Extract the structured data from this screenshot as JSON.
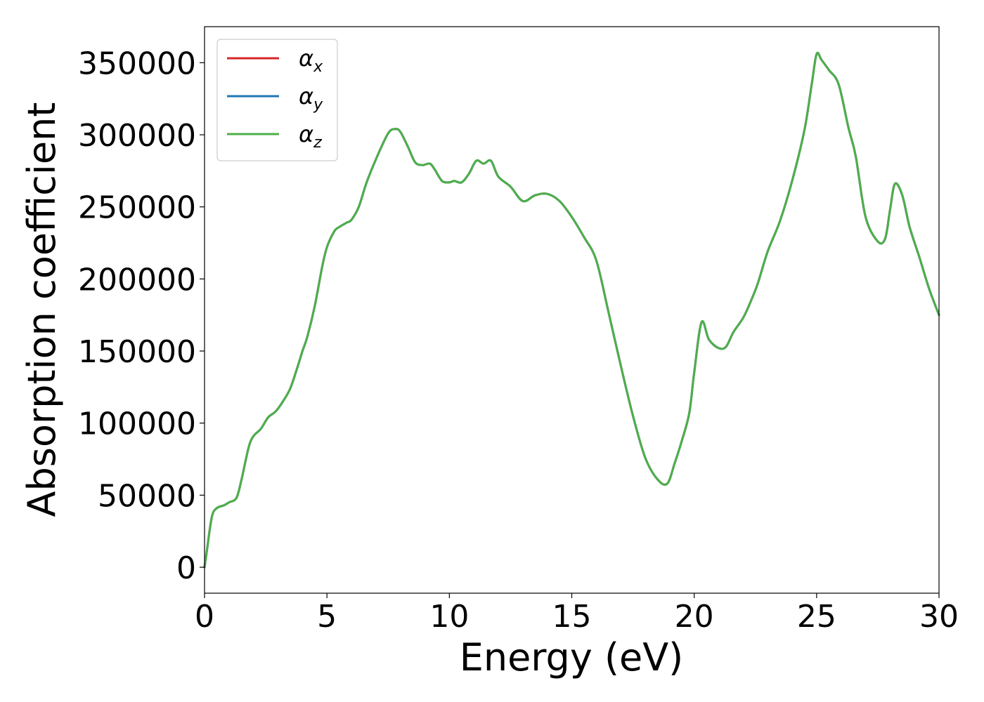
{
  "chart_data": {
    "type": "line",
    "title": "",
    "xlabel": "Energy (eV)",
    "ylabel": "Absorption coefficient",
    "xlim": [
      0,
      30
    ],
    "ylim": [
      -18000,
      375000
    ],
    "xticks": [
      0,
      5,
      10,
      15,
      20,
      25,
      30
    ],
    "yticks": [
      0,
      50000,
      100000,
      150000,
      200000,
      250000,
      300000,
      350000
    ],
    "xtick_labels": [
      "0",
      "5",
      "10",
      "15",
      "20",
      "25",
      "30"
    ],
    "ytick_labels": [
      "0",
      "50000",
      "100000",
      "150000",
      "200000",
      "250000",
      "300000",
      "350000"
    ],
    "grid": false,
    "legend_position": "top-left",
    "colors": {
      "alpha_x": "#d62728",
      "alpha_y": "#1f77b4",
      "alpha_z": "#4daf4a"
    },
    "x": [
      0,
      0.1,
      0.3,
      0.5,
      0.8,
      1.0,
      1.3,
      1.5,
      1.8,
      2.0,
      2.3,
      2.6,
      2.9,
      3.2,
      3.5,
      3.8,
      4.0,
      4.2,
      4.5,
      4.8,
      5.0,
      5.3,
      5.5,
      5.8,
      6.0,
      6.3,
      6.6,
      7.0,
      7.5,
      7.8,
      8.0,
      8.3,
      8.6,
      8.9,
      9.2,
      9.4,
      9.7,
      10.0,
      10.2,
      10.5,
      10.8,
      11.1,
      11.4,
      11.7,
      12.0,
      12.5,
      13.0,
      13.5,
      14.0,
      14.5,
      15.0,
      15.5,
      16.0,
      16.5,
      17.0,
      17.5,
      18.0,
      18.5,
      18.9,
      19.2,
      19.5,
      19.8,
      20.0,
      20.3,
      20.6,
      21.0,
      21.3,
      21.6,
      22.0,
      22.3,
      22.6,
      23.0,
      23.5,
      24.0,
      24.5,
      24.8,
      25.0,
      25.2,
      25.5,
      25.9,
      26.3,
      26.6,
      27.0,
      27.5,
      27.8,
      28.0,
      28.2,
      28.5,
      28.8,
      29.2,
      29.6,
      30.0
    ],
    "series": [
      {
        "name": "αx",
        "values": [
          0,
          12000,
          35000,
          41000,
          43000,
          45000,
          48000,
          60000,
          83000,
          91000,
          96000,
          104000,
          108000,
          115000,
          124000,
          139000,
          150000,
          160000,
          181000,
          208000,
          222000,
          233000,
          236000,
          239000,
          241000,
          250000,
          266000,
          283000,
          301000,
          304000,
          302000,
          292000,
          281000,
          279000,
          280000,
          276000,
          268000,
          267000,
          268000,
          267000,
          273000,
          282000,
          280000,
          282000,
          271000,
          264000,
          254000,
          258000,
          259000,
          254000,
          243000,
          229000,
          213000,
          177000,
          140000,
          105000,
          76000,
          61000,
          58000,
          72000,
          88000,
          107000,
          135000,
          170000,
          158000,
          152000,
          153000,
          163000,
          173000,
          184000,
          197000,
          219000,
          240000,
          268000,
          303000,
          335000,
          356000,
          352000,
          345000,
          335000,
          305000,
          285000,
          243000,
          226000,
          228000,
          248000,
          266000,
          258000,
          236000,
          215000,
          193000,
          175000
        ]
      },
      {
        "name": "αy",
        "values": [
          0,
          12000,
          35000,
          41000,
          43000,
          45000,
          48000,
          60000,
          83000,
          91000,
          96000,
          104000,
          108000,
          115000,
          124000,
          139000,
          150000,
          160000,
          181000,
          208000,
          222000,
          233000,
          236000,
          239000,
          241000,
          250000,
          266000,
          283000,
          301000,
          304000,
          302000,
          292000,
          281000,
          279000,
          280000,
          276000,
          268000,
          267000,
          268000,
          267000,
          273000,
          282000,
          280000,
          282000,
          271000,
          264000,
          254000,
          258000,
          259000,
          254000,
          243000,
          229000,
          213000,
          177000,
          140000,
          105000,
          76000,
          61000,
          58000,
          72000,
          88000,
          107000,
          135000,
          170000,
          158000,
          152000,
          153000,
          163000,
          173000,
          184000,
          197000,
          219000,
          240000,
          268000,
          303000,
          335000,
          356000,
          352000,
          345000,
          335000,
          305000,
          285000,
          243000,
          226000,
          228000,
          248000,
          266000,
          258000,
          236000,
          215000,
          193000,
          175000
        ]
      },
      {
        "name": "αz",
        "values": [
          0,
          12000,
          35000,
          41000,
          43000,
          45000,
          48000,
          60000,
          83000,
          91000,
          96000,
          104000,
          108000,
          115000,
          124000,
          139000,
          150000,
          160000,
          181000,
          208000,
          222000,
          233000,
          236000,
          239000,
          241000,
          250000,
          266000,
          283000,
          301000,
          304000,
          302000,
          292000,
          281000,
          279000,
          280000,
          276000,
          268000,
          267000,
          268000,
          267000,
          273000,
          282000,
          280000,
          282000,
          271000,
          264000,
          254000,
          258000,
          259000,
          254000,
          243000,
          229000,
          213000,
          177000,
          140000,
          105000,
          76000,
          61000,
          58000,
          72000,
          88000,
          107000,
          135000,
          170000,
          158000,
          152000,
          153000,
          163000,
          173000,
          184000,
          197000,
          219000,
          240000,
          268000,
          303000,
          335000,
          356000,
          352000,
          345000,
          335000,
          305000,
          285000,
          243000,
          226000,
          228000,
          248000,
          266000,
          258000,
          236000,
          215000,
          193000,
          175000
        ]
      }
    ],
    "legend": [
      {
        "symbol": "α",
        "subscript": "x"
      },
      {
        "symbol": "α",
        "subscript": "y"
      },
      {
        "symbol": "α",
        "subscript": "z"
      }
    ]
  }
}
